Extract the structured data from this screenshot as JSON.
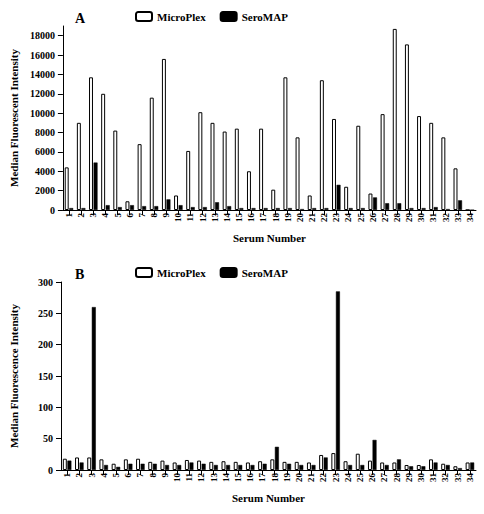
{
  "chart_data": [
    {
      "type": "bar",
      "title": "A",
      "x_label": "Serum Number",
      "y_label": "Median Fluorescent Intensity",
      "categories": [
        "1",
        "2",
        "3",
        "4",
        "5",
        "6",
        "7",
        "8",
        "9",
        "10",
        "11",
        "12",
        "13",
        "14",
        "15",
        "16",
        "17",
        "18",
        "19",
        "20",
        "21",
        "22",
        "23",
        "24",
        "25",
        "26",
        "27",
        "28",
        "29",
        "30",
        "31",
        "32",
        "33",
        "34"
      ],
      "series": [
        {
          "name": "MicroPlex",
          "color": "#ffffff",
          "values": [
            4400,
            9000,
            13700,
            12000,
            8200,
            900,
            6800,
            11600,
            15600,
            1500,
            6100,
            10100,
            9000,
            8100,
            8400,
            4000,
            8400,
            2100,
            13700,
            7500,
            1500,
            13400,
            9400,
            2400,
            8700,
            1700,
            9900,
            18700,
            17100,
            9700,
            9000,
            7500,
            4300,
            0
          ]
        },
        {
          "name": "SeroMAP",
          "color": "#000000",
          "values": [
            200,
            200,
            4900,
            500,
            300,
            500,
            400,
            400,
            1100,
            500,
            300,
            300,
            800,
            400,
            200,
            200,
            200,
            200,
            200,
            100,
            200,
            200,
            2600,
            200,
            200,
            1300,
            700,
            700,
            200,
            200,
            300,
            100,
            1000,
            0
          ]
        }
      ],
      "ylim": [
        0,
        19000
      ],
      "yticks": [
        0,
        2000,
        4000,
        6000,
        8000,
        10000,
        12000,
        14000,
        16000,
        18000
      ],
      "grid": false,
      "legend": "top"
    },
    {
      "type": "bar",
      "title": "B",
      "x_label": "Serum Number",
      "y_label": "Median Fluorescence Intensity",
      "categories": [
        "1",
        "2",
        "3",
        "4",
        "5",
        "6",
        "7",
        "8",
        "9",
        "10",
        "11",
        "12",
        "13",
        "14",
        "15",
        "16",
        "17",
        "18",
        "19",
        "20",
        "21",
        "22",
        "23",
        "24",
        "25",
        "26",
        "27",
        "28",
        "29",
        "30",
        "31",
        "32",
        "33",
        "34"
      ],
      "series": [
        {
          "name": "MicroPlex",
          "color": "#ffffff",
          "values": [
            18,
            20,
            20,
            17,
            10,
            17,
            18,
            13,
            15,
            12,
            16,
            15,
            13,
            14,
            13,
            12,
            14,
            17,
            13,
            13,
            12,
            24,
            27,
            14,
            26,
            15,
            12,
            12,
            8,
            8,
            17,
            10,
            6,
            12
          ]
        },
        {
          "name": "SeroMAP",
          "color": "#000000",
          "values": [
            15,
            12,
            260,
            8,
            5,
            10,
            10,
            10,
            8,
            8,
            12,
            10,
            8,
            8,
            8,
            8,
            10,
            37,
            10,
            8,
            8,
            20,
            285,
            8,
            8,
            48,
            8,
            17,
            6,
            6,
            12,
            8,
            3,
            12
          ]
        }
      ],
      "ylim": [
        0,
        300
      ],
      "yticks": [
        0,
        50,
        100,
        150,
        200,
        250,
        300
      ],
      "grid": false,
      "legend": "top"
    }
  ]
}
